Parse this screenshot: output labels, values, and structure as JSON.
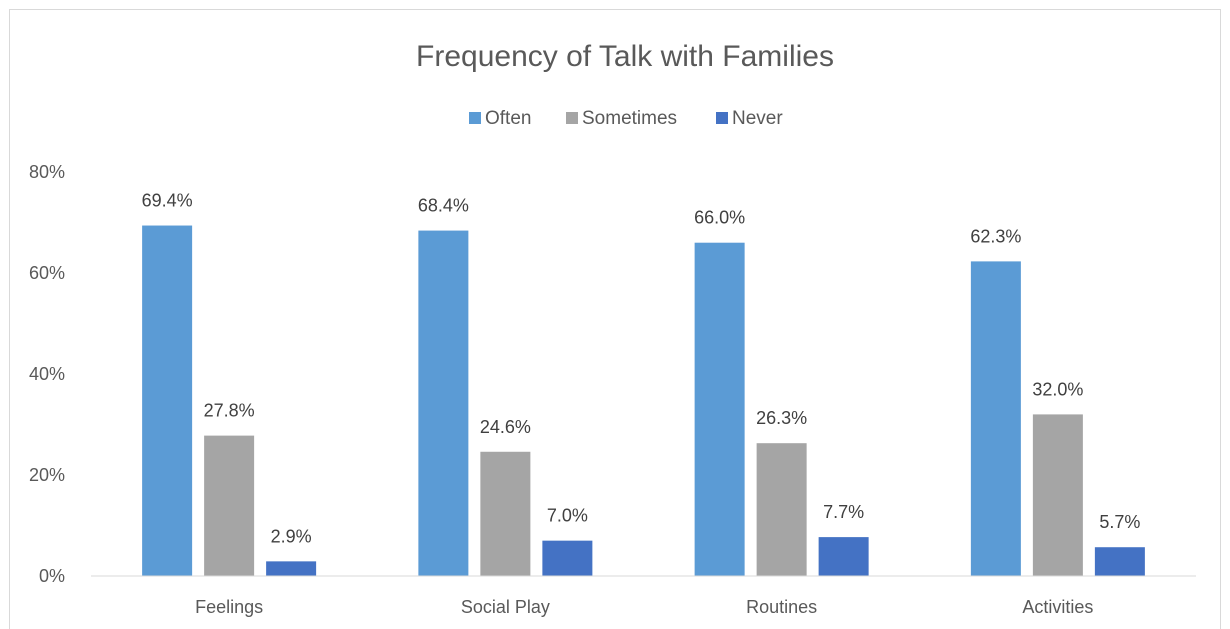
{
  "chart_data": {
    "type": "bar",
    "title": "Frequency of Talk with Families",
    "xlabel": "",
    "ylabel": "",
    "categories": [
      "Feelings",
      "Social Play",
      "Routines",
      "Activities"
    ],
    "series": [
      {
        "name": "Often",
        "color": "#5b9bd5",
        "values": [
          69.4,
          68.4,
          66.0,
          62.3
        ],
        "labels": [
          "69.4%",
          "68.4%",
          "66.0%",
          "62.3%"
        ]
      },
      {
        "name": "Sometimes",
        "color": "#a5a5a5",
        "values": [
          27.8,
          24.6,
          26.3,
          32.0
        ],
        "labels": [
          "27.8%",
          "24.6%",
          "26.3%",
          "32.0%"
        ]
      },
      {
        "name": "Never",
        "color": "#4472c4",
        "values": [
          2.9,
          7.0,
          7.7,
          5.7
        ],
        "labels": [
          "2.9%",
          "7.0%",
          "7.7%",
          "5.7%"
        ]
      }
    ],
    "ylim": [
      0,
      80
    ],
    "yticks": [
      {
        "value": 0,
        "label": "0%"
      },
      {
        "value": 20,
        "label": "20%"
      },
      {
        "value": 40,
        "label": "40%"
      },
      {
        "value": 60,
        "label": "60%"
      },
      {
        "value": 80,
        "label": "80%"
      }
    ],
    "grid": false,
    "legend_position": "top"
  }
}
